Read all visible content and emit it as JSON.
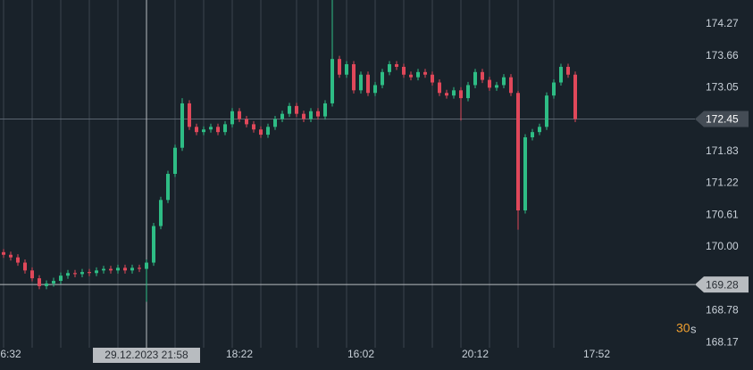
{
  "chart_data": {
    "type": "candlestick",
    "up_color": "#2ebd85",
    "down_color": "#e0485a",
    "ylim": [
      168.07,
      174.73
    ],
    "yticks": [
      174.27,
      173.66,
      173.05,
      171.83,
      171.22,
      170.61,
      {
        "value": 170,
        "label": "170.00"
      },
      168.78,
      168.17
    ],
    "xlim": [
      -0.5,
      96.75
    ],
    "xticks": [
      {
        "value": 1,
        "label": "6:32"
      },
      {
        "value": 33,
        "label": "18:22"
      },
      {
        "value": 50,
        "label": "16:02"
      },
      {
        "value": 66,
        "label": "20:12"
      },
      {
        "value": 83,
        "label": "17:52"
      }
    ],
    "xgrid": [
      0,
      4,
      8,
      12,
      16,
      24,
      28,
      32,
      36,
      41,
      44,
      48,
      52,
      56,
      60,
      64,
      68,
      72,
      77
    ],
    "current_price": 172.45,
    "crosshair": {
      "price": 169.28,
      "index": 20,
      "time_label": "29.12.2023 21:58"
    },
    "interval_value": "30",
    "interval_unit": "s",
    "ohlc": [
      [
        169.9,
        169.96,
        169.79,
        169.85
      ],
      [
        169.85,
        169.91,
        169.74,
        169.8
      ],
      [
        169.8,
        169.86,
        169.64,
        169.7
      ],
      [
        169.7,
        169.76,
        169.49,
        169.55
      ],
      [
        169.55,
        169.61,
        169.34,
        169.4
      ],
      [
        169.4,
        169.46,
        169.19,
        169.25
      ],
      [
        169.25,
        169.36,
        169.19,
        169.3
      ],
      [
        169.3,
        169.41,
        169.24,
        169.35
      ],
      [
        169.35,
        169.51,
        169.29,
        169.45
      ],
      [
        169.45,
        169.56,
        169.39,
        169.5
      ],
      [
        169.5,
        169.56,
        169.42,
        169.48
      ],
      [
        169.48,
        169.58,
        169.42,
        169.52
      ],
      [
        169.52,
        169.58,
        169.44,
        169.5
      ],
      [
        169.5,
        169.61,
        169.44,
        169.55
      ],
      [
        169.55,
        169.64,
        169.49,
        169.58
      ],
      [
        169.58,
        169.64,
        169.49,
        169.55
      ],
      [
        169.55,
        169.66,
        169.49,
        169.6
      ],
      [
        169.6,
        169.66,
        169.49,
        169.55
      ],
      [
        169.55,
        169.66,
        169.49,
        169.6
      ],
      [
        169.6,
        169.66,
        169.52,
        169.58
      ],
      [
        169.58,
        169.76,
        168.95,
        169.7
      ],
      [
        169.7,
        170.46,
        169.64,
        170.4
      ],
      [
        170.4,
        170.96,
        170.34,
        170.9
      ],
      [
        170.9,
        171.46,
        170.84,
        171.4
      ],
      [
        171.4,
        171.96,
        171.34,
        171.9
      ],
      [
        171.9,
        172.85,
        171.84,
        172.75
      ],
      [
        172.75,
        172.81,
        172.24,
        172.3
      ],
      [
        172.3,
        172.36,
        172.14,
        172.2
      ],
      [
        172.2,
        172.31,
        172.14,
        172.25
      ],
      [
        172.25,
        172.36,
        172.19,
        172.3
      ],
      [
        172.3,
        172.36,
        172.14,
        172.2
      ],
      [
        172.2,
        172.41,
        172.14,
        172.35
      ],
      [
        172.35,
        172.66,
        172.29,
        172.6
      ],
      [
        172.6,
        172.66,
        172.39,
        172.45
      ],
      [
        172.45,
        172.51,
        172.29,
        172.35
      ],
      [
        172.35,
        172.41,
        172.19,
        172.25
      ],
      [
        172.25,
        172.31,
        172.09,
        172.15
      ],
      [
        172.15,
        172.36,
        172.09,
        172.3
      ],
      [
        172.3,
        172.51,
        172.24,
        172.45
      ],
      [
        172.45,
        172.61,
        172.39,
        172.55
      ],
      [
        172.55,
        172.76,
        172.49,
        172.7
      ],
      [
        172.7,
        172.76,
        172.49,
        172.55
      ],
      [
        172.55,
        172.61,
        172.39,
        172.45
      ],
      [
        172.45,
        172.66,
        172.39,
        172.6
      ],
      [
        172.6,
        172.66,
        172.44,
        172.5
      ],
      [
        172.5,
        172.81,
        172.44,
        172.75
      ],
      [
        172.75,
        174.73,
        172.69,
        173.6
      ],
      [
        173.6,
        173.66,
        173.24,
        173.3
      ],
      [
        173.3,
        173.56,
        173.24,
        173.5
      ],
      [
        173.5,
        173.56,
        172.94,
        173.0
      ],
      [
        173.0,
        173.36,
        172.94,
        173.3
      ],
      [
        173.3,
        173.36,
        172.89,
        172.95
      ],
      [
        172.95,
        173.16,
        172.89,
        173.1
      ],
      [
        173.1,
        173.41,
        173.04,
        173.35
      ],
      [
        173.35,
        173.56,
        173.29,
        173.5
      ],
      [
        173.5,
        173.56,
        173.39,
        173.45
      ],
      [
        173.45,
        173.51,
        173.24,
        173.3
      ],
      [
        173.3,
        173.36,
        173.19,
        173.25
      ],
      [
        173.25,
        173.41,
        173.19,
        173.35
      ],
      [
        173.35,
        173.41,
        173.24,
        173.3
      ],
      [
        173.3,
        173.36,
        173.09,
        173.15
      ],
      [
        173.15,
        173.21,
        172.89,
        172.95
      ],
      [
        172.95,
        173.01,
        172.84,
        172.9
      ],
      [
        172.9,
        173.06,
        172.84,
        173.0
      ],
      [
        173.0,
        173.06,
        172.42,
        172.85
      ],
      [
        172.85,
        173.16,
        172.79,
        173.1
      ],
      [
        173.1,
        173.41,
        173.04,
        173.35
      ],
      [
        173.35,
        173.41,
        173.14,
        173.2
      ],
      [
        173.2,
        173.26,
        172.99,
        173.05
      ],
      [
        173.05,
        173.16,
        172.99,
        173.1
      ],
      [
        173.1,
        173.31,
        173.04,
        173.25
      ],
      [
        173.25,
        173.31,
        172.89,
        172.95
      ],
      [
        172.95,
        172.99,
        170.33,
        170.7
      ],
      [
        170.7,
        172.16,
        170.64,
        172.1
      ],
      [
        172.1,
        172.26,
        172.04,
        172.2
      ],
      [
        172.2,
        172.36,
        172.14,
        172.3
      ],
      [
        172.3,
        172.96,
        172.24,
        172.9
      ],
      [
        172.9,
        173.21,
        172.84,
        173.15
      ],
      [
        173.15,
        173.51,
        173.09,
        173.45
      ],
      [
        173.45,
        173.51,
        173.24,
        173.3
      ],
      [
        173.3,
        173.36,
        172.39,
        172.45
      ]
    ]
  }
}
